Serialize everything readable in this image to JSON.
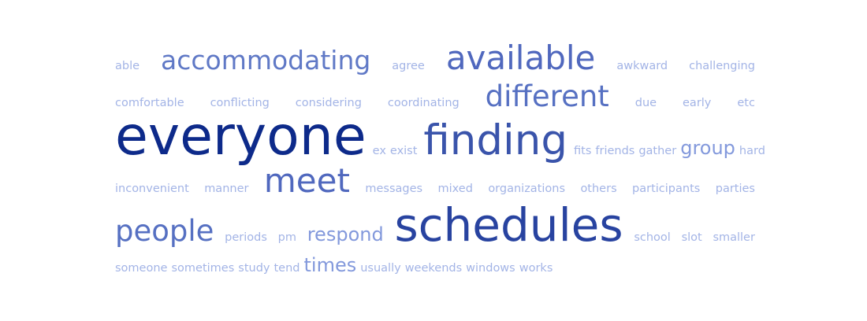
{
  "cloud": {
    "row1": [
      "able",
      "accommodating",
      "agree",
      "available",
      "awkward",
      "challenging"
    ],
    "row2": [
      "comfortable",
      "conflicting",
      "considering",
      "coordinating",
      "different",
      "due",
      "early",
      "etc"
    ],
    "row3": [
      "everyone",
      "ex",
      "exist",
      "finding",
      "fits",
      "friends",
      "gather",
      "group",
      "hard"
    ],
    "row4": [
      "inconvenient",
      "manner",
      "meet",
      "messages",
      "mixed",
      "organizations",
      "others",
      "participants",
      "parties"
    ],
    "row5": [
      "people",
      "periods",
      "pm",
      "respond",
      "schedules",
      "school",
      "slot",
      "smaller"
    ],
    "row6": [
      "someone",
      "sometimes",
      "study",
      "tend",
      "times",
      "usually",
      "weekends",
      "windows",
      "works"
    ]
  }
}
